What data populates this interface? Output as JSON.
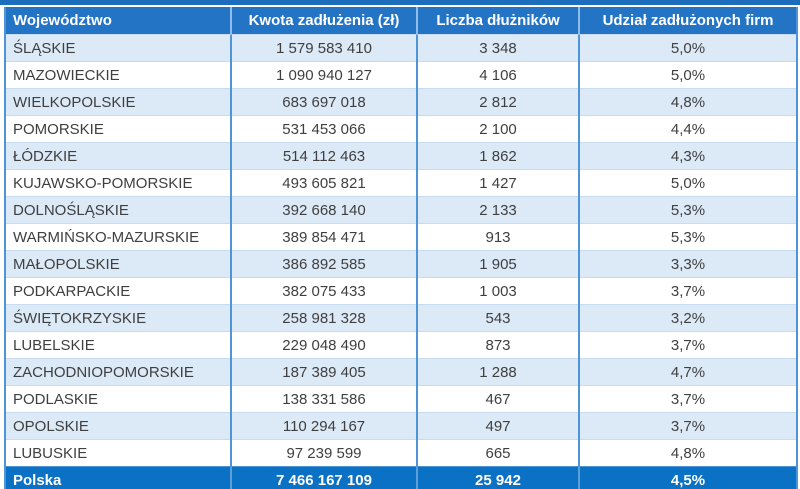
{
  "chart_data": {
    "type": "table",
    "columns": [
      "Województwo",
      "Kwota zadłużenia (zł)",
      "Liczba dłużników",
      "Udział zadłużonych firm"
    ],
    "rows": [
      [
        "ŚLĄSKIE",
        "1 579 583 410",
        "3 348",
        "5,0%"
      ],
      [
        "MAZOWIECKIE",
        "1 090 940 127",
        "4 106",
        "5,0%"
      ],
      [
        "WIELKOPOLSKIE",
        "683 697 018",
        "2 812",
        "4,8%"
      ],
      [
        "POMORSKIE",
        "531 453 066",
        "2 100",
        "4,4%"
      ],
      [
        "ŁÓDZKIE",
        "514 112 463",
        "1 862",
        "4,3%"
      ],
      [
        "KUJAWSKO-POMORSKIE",
        "493 605 821",
        "1 427",
        "5,0%"
      ],
      [
        "DOLNOŚLĄSKIE",
        "392 668 140",
        "2 133",
        "5,3%"
      ],
      [
        "WARMIŃSKO-MAZURSKIE",
        "389 854 471",
        "913",
        "5,3%"
      ],
      [
        "MAŁOPOLSKIE",
        "386 892 585",
        "1 905",
        "3,3%"
      ],
      [
        "PODKARPACKIE",
        "382 075 433",
        "1 003",
        "3,7%"
      ],
      [
        "ŚWIĘTOKRZYSKIE",
        "258 981 328",
        "543",
        "3,2%"
      ],
      [
        "LUBELSKIE",
        "229 048 490",
        "873",
        "3,7%"
      ],
      [
        "ZACHODNIOPOMORSKIE",
        "187 389 405",
        "1 288",
        "4,7%"
      ],
      [
        "PODLASKIE",
        "138 331 586",
        "467",
        "3,7%"
      ],
      [
        "OPOLSKIE",
        "110 294 167",
        "497",
        "3,7%"
      ],
      [
        "LUBUSKIE",
        "97 239 599",
        "665",
        "4,8%"
      ]
    ],
    "footer": [
      "Polska",
      "7 466 167 109",
      "25 942",
      "4,5%"
    ],
    "layout_hints": {
      "alternating_rows": "odd rows light blue starting with first data row",
      "column_alignment": [
        "left",
        "center",
        "center",
        "center"
      ]
    }
  },
  "colors": {
    "top_bar": "#1D6DBD",
    "header_bg": "#2474C5",
    "footer_bg": "#0B71C4",
    "alt_row_bg": "#DCE9F7",
    "grid_vertical": "#4E94D6",
    "grid_horizontal": "#C7DCF0",
    "header_grid": "#8FBCE8",
    "footer_grid": "#5D9FD8",
    "text": "#3F3F3F",
    "header_text": "#FFFFFF"
  }
}
